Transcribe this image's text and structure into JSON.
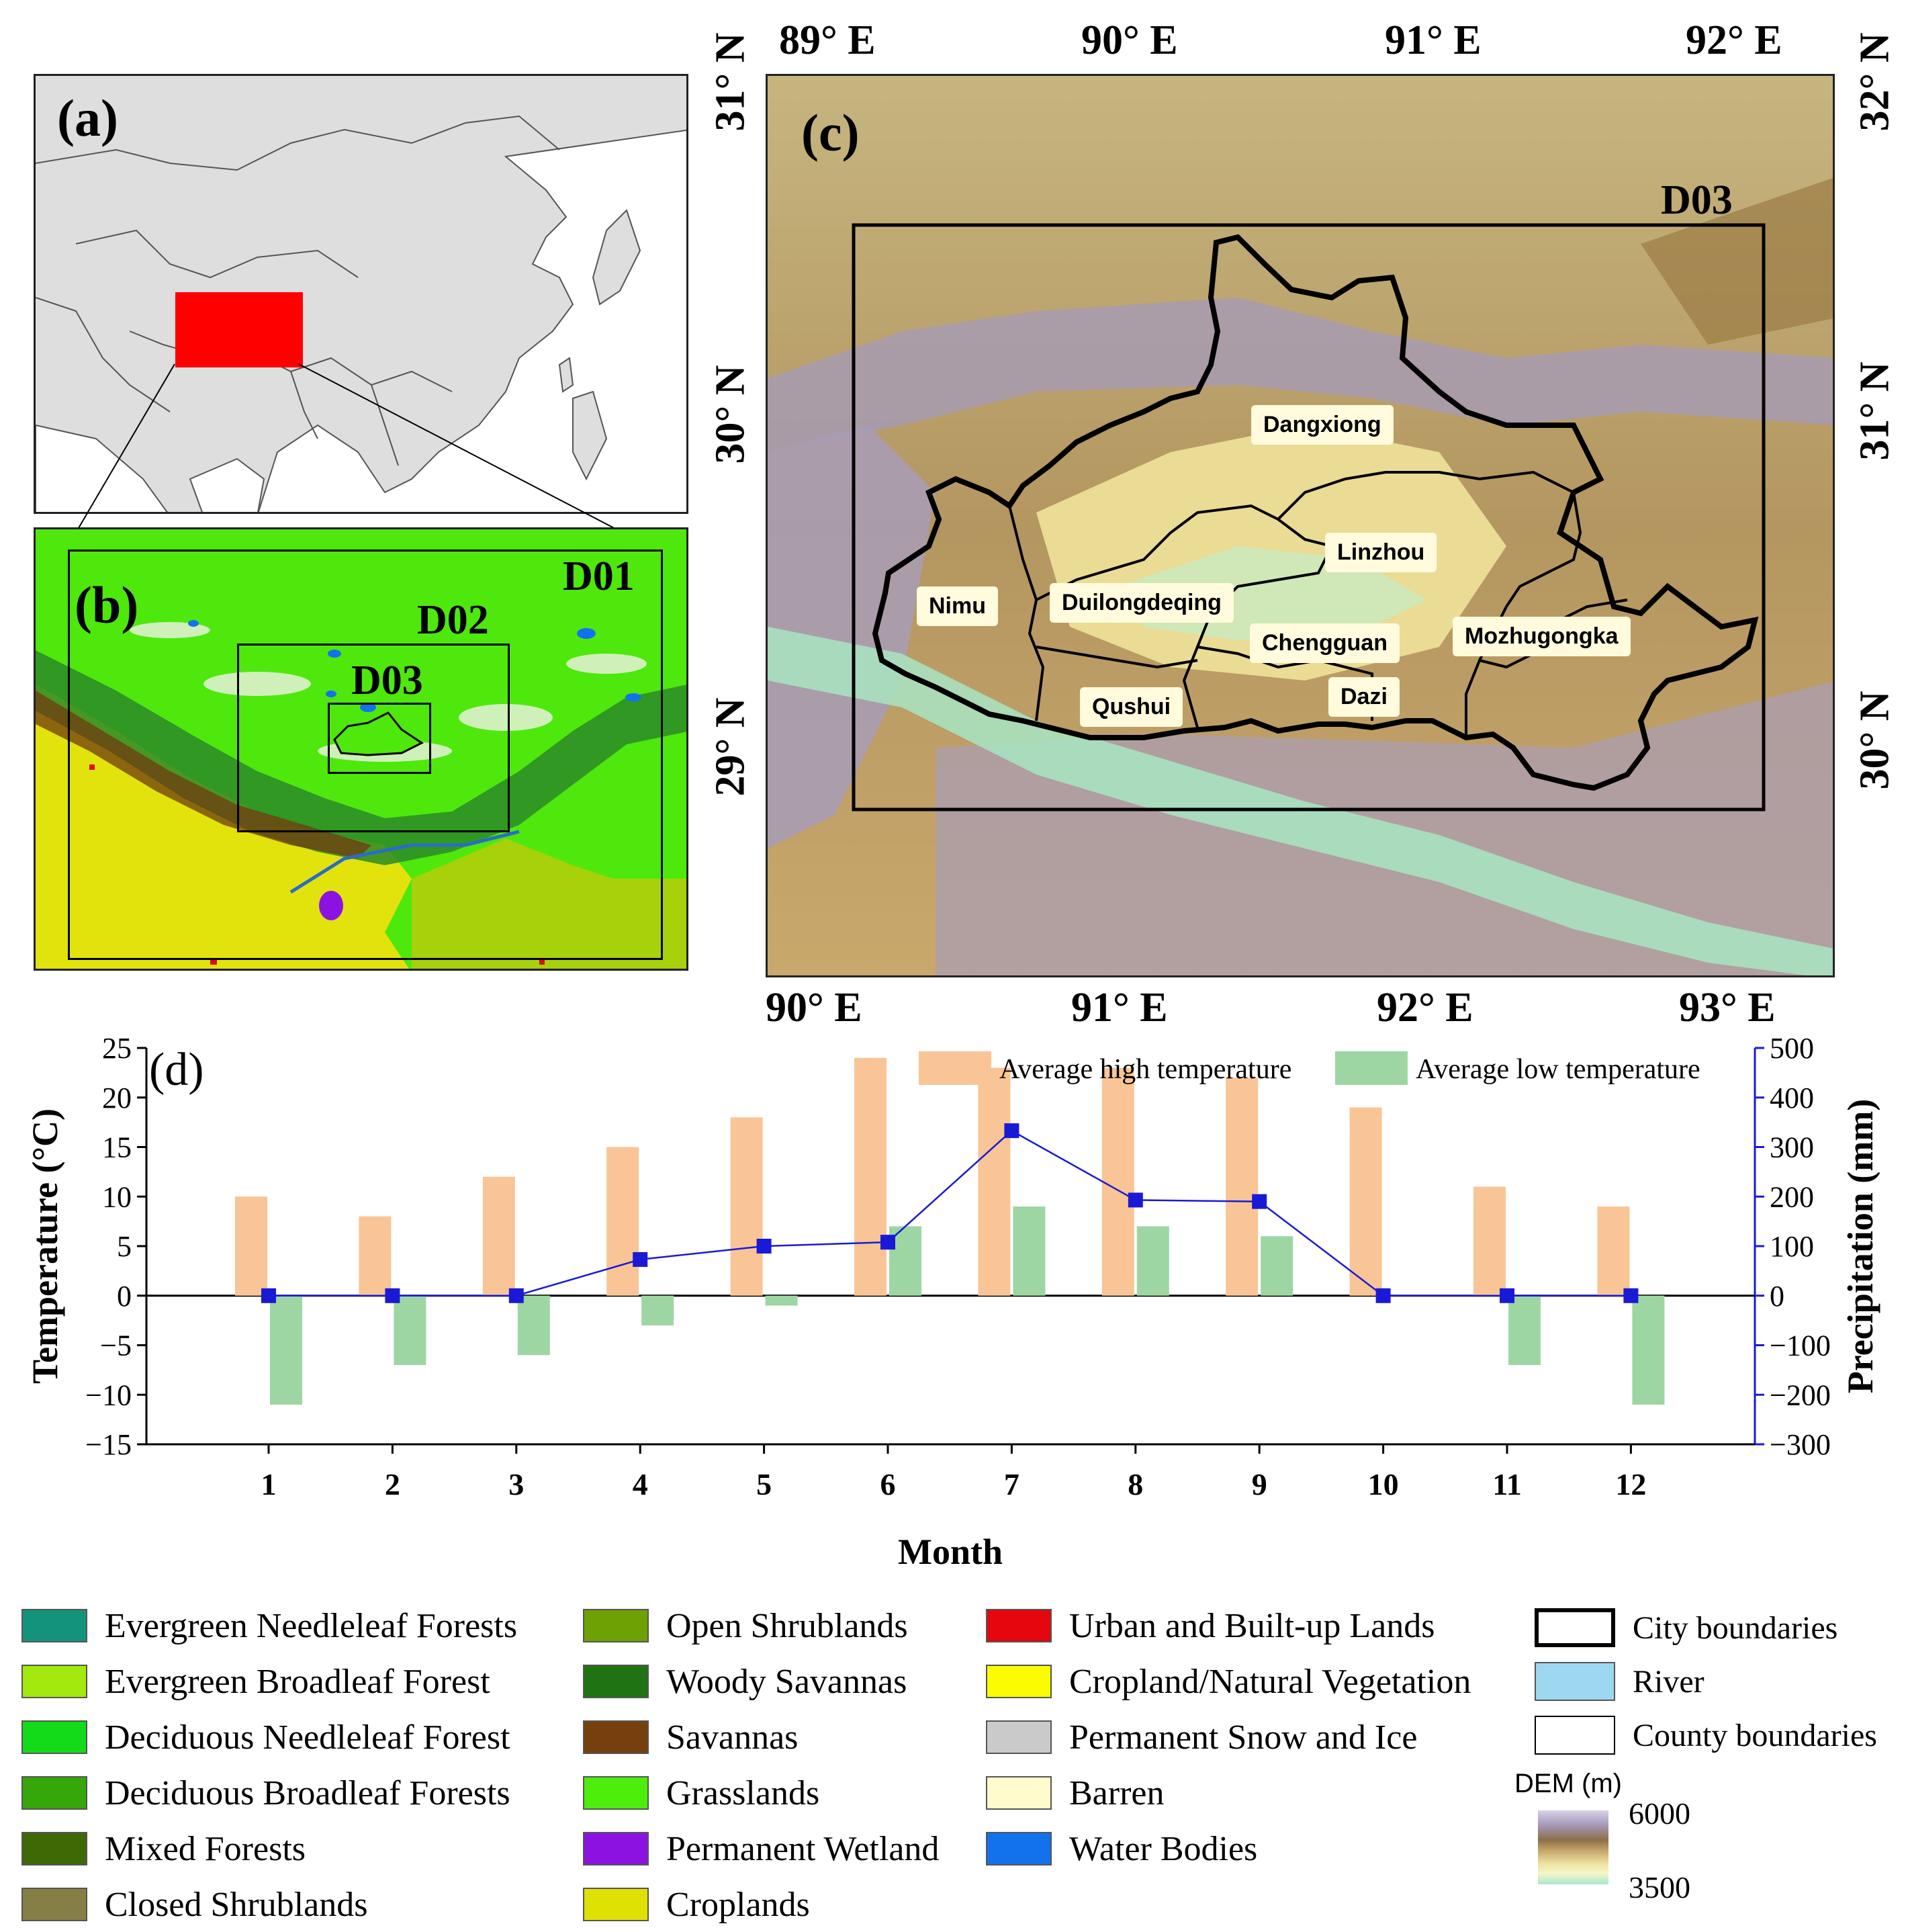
{
  "panels": {
    "a": "(a)",
    "b": "(b)",
    "c": "(c)"
  },
  "panel_b": {
    "domains": [
      "D01",
      "D02",
      "D03"
    ]
  },
  "panel_c": {
    "domain_label": "D03",
    "top_lon": [
      "89° E",
      "90° E",
      "91° E",
      "92° E"
    ],
    "bottom_lon": [
      "90° E",
      "91° E",
      "92° E",
      "93° E"
    ],
    "left_lat": [
      "31° N",
      "30° N",
      "29° N"
    ],
    "right_lat": [
      "32° N",
      "31° N",
      "30° N"
    ],
    "counties": [
      "Dangxiong",
      "Linzhou",
      "Nimu",
      "Duilongdeqing",
      "Chengguan",
      "Mozhugongka",
      "Qushui",
      "Dazi"
    ]
  },
  "chart_data": {
    "type": "bar",
    "panel_label": "(d)",
    "xlabel": "Month",
    "ylabel": "Temperature (°C)",
    "y2label": "Precipitation (mm)",
    "categories": [
      "1",
      "2",
      "3",
      "4",
      "5",
      "6",
      "7",
      "8",
      "9",
      "10",
      "11",
      "12"
    ],
    "ylim": [
      -15,
      25
    ],
    "y2lim": [
      -300,
      500
    ],
    "yticks": [
      -15,
      -10,
      -5,
      0,
      5,
      10,
      15,
      20,
      25
    ],
    "y2ticks": [
      -300,
      -200,
      -100,
      0,
      100,
      200,
      300,
      400,
      500
    ],
    "series": [
      {
        "name": "Average high temperature",
        "color": "#f9c596",
        "values": [
          10,
          8,
          12,
          15,
          18,
          24,
          23,
          23,
          22,
          19,
          11,
          9
        ]
      },
      {
        "name": "Average low temperature",
        "color": "#9ed6a3",
        "values": [
          -11,
          -7,
          -6,
          -3,
          -1,
          7,
          9,
          7,
          6,
          0,
          -7,
          -11
        ]
      },
      {
        "name": "Precipitation",
        "color": "#1a1ad6",
        "axis": "y2",
        "values": [
          0,
          0,
          0,
          73,
          100,
          108,
          333,
          193,
          190,
          0,
          0,
          0
        ]
      }
    ]
  },
  "legend": {
    "col1": [
      {
        "label": "Evergreen Needleleaf Forests",
        "color": "#14937c"
      },
      {
        "label": "Evergreen Broadleaf Forest",
        "color": "#a3e90d"
      },
      {
        "label": "Deciduous Needleleaf Forest",
        "color": "#14db1a"
      },
      {
        "label": "Deciduous Broadleaf Forests",
        "color": "#35a70a"
      },
      {
        "label": "Mixed Forests",
        "color": "#3d6a05"
      },
      {
        "label": "Closed Shrublands",
        "color": "#857f46"
      }
    ],
    "col2": [
      {
        "label": "Open Shrublands",
        "color": "#6ea103"
      },
      {
        "label": "Woody Savannas",
        "color": "#207312"
      },
      {
        "label": "Savannas",
        "color": "#75400d"
      },
      {
        "label": "Grasslands",
        "color": "#4dee0b"
      },
      {
        "label": "Permanent Wetland",
        "color": "#8c12e1"
      },
      {
        "label": "Croplands",
        "color": "#dfe103"
      }
    ],
    "col3": [
      {
        "label": "Urban and Built-up Lands",
        "color": "#e5060e"
      },
      {
        "label": "Cropland/Natural Vegetation",
        "color": "#fbfb02"
      },
      {
        "label": "Permanent Snow and Ice",
        "color": "#cacaca"
      },
      {
        "label": "Barren",
        "color": "#fffbcc"
      },
      {
        "label": "Water Bodies",
        "color": "#1272ee"
      }
    ],
    "col4": {
      "city": "City boundaries",
      "river": "River",
      "county": "County boundaries",
      "dem_title": "DEM (m)",
      "dem_max": "6000",
      "dem_min": "3500",
      "river_color": "#9dd8f0"
    }
  }
}
